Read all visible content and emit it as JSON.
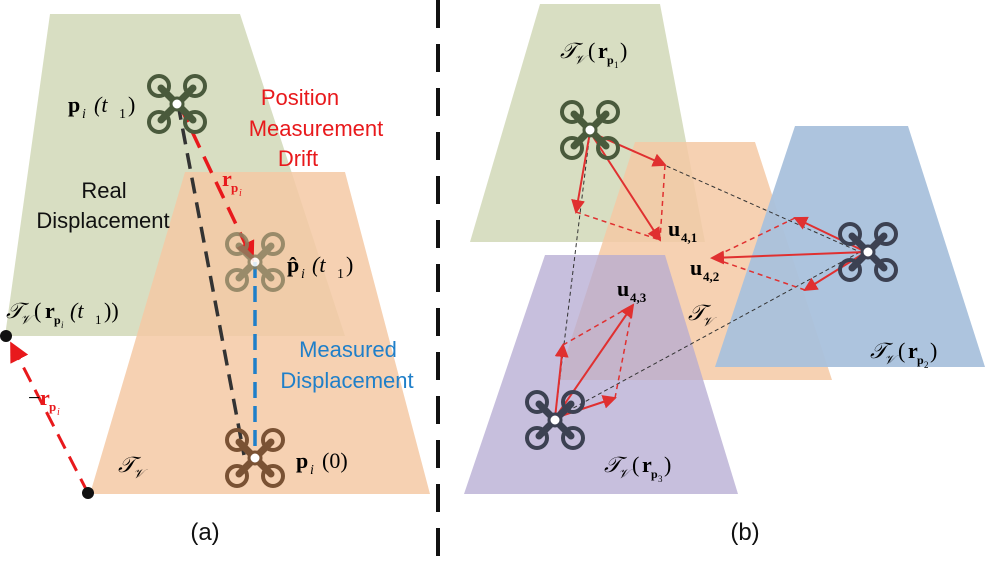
{
  "panel_a": {
    "caption": "(a)",
    "labels": {
      "position_drift": [
        "Position",
        "Measurement",
        "Drift"
      ],
      "real_displacement": [
        "Real",
        "Displacement"
      ],
      "measured_displacement": [
        "Measured",
        "Displacement"
      ],
      "p_t1": "p",
      "p_t1_sub": "i",
      "p_t1_arg": "(t",
      "p_t1_arg_sub": "1",
      "p_t1_close": ")",
      "phat_t1": "p̂",
      "phat_t1_sub": "i",
      "phat_t1_arg": "(t",
      "phat_t1_arg_sub": "1",
      "phat_t1_close": ")",
      "p_0": "p",
      "p_0_sub": "i",
      "p_0_arg": "(0)",
      "r_p": "r",
      "r_p_sub": "p",
      "r_p_subsub": "i",
      "neg_r_p_minus": "−",
      "neg_r_p": "r",
      "neg_r_p_sub": "p",
      "neg_r_p_subsub": "i",
      "T_v_r": "𝒯",
      "T_v_r_sub": "𝒱",
      "T_v_r_arg_open": "(",
      "T_v_r_r": "r",
      "T_v_r_psub": "p",
      "T_v_r_isub": "i",
      "T_v_r_targ": "(t",
      "T_v_r_targ_sub": "1",
      "T_v_r_close": "))",
      "T_v": "𝒯",
      "T_v_sub": "𝒱"
    }
  },
  "panel_b": {
    "caption": "(b)",
    "labels": {
      "T1": "𝒯",
      "T1_sub": "𝒱",
      "T1_open": "(",
      "T1_r": "r",
      "T1_p": "p",
      "T1_i": "1",
      "T1_close": ")",
      "T2": "𝒯",
      "T2_sub": "𝒱",
      "T2_open": "(",
      "T2_r": "r",
      "T2_p": "p",
      "T2_i": "2",
      "T2_close": ")",
      "T3": "𝒯",
      "T3_sub": "𝒱",
      "T3_open": "(",
      "T3_r": "r",
      "T3_p": "p",
      "T3_i": "3",
      "T3_close": ")",
      "Tv": "𝒯",
      "Tv_sub": "𝒱",
      "u41": "u",
      "u41_sub": "4,1",
      "u42": "u",
      "u42_sub": "4,2",
      "u43": "u",
      "u43_sub": "4,3"
    }
  },
  "colors": {
    "green_region": "#d6dcbf",
    "orange_region": "#f5c9a4",
    "blue_region": "#a9c1dc",
    "purple_region": "#c4bcd9",
    "red": "#e8191c",
    "blue_dash": "#1f7fc9",
    "drone_green": "#4a5a3c",
    "drone_brown": "#7a5234",
    "drone_dark": "#3c4152"
  }
}
